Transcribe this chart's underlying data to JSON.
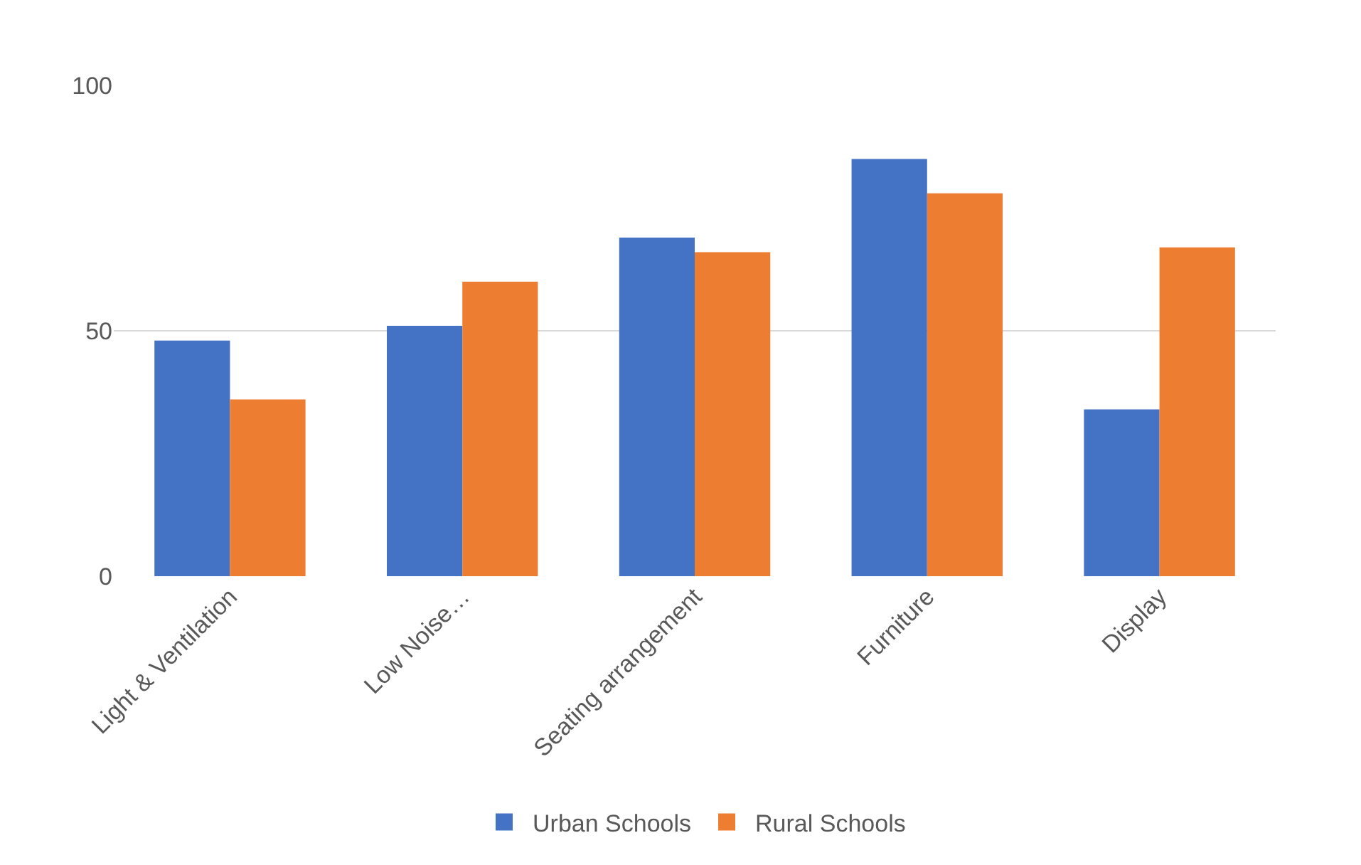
{
  "chart_data": {
    "type": "bar",
    "categories": [
      "Light & Ventilation",
      "Low Noise…",
      "Seating arrangement",
      "Furniture",
      "Display"
    ],
    "series": [
      {
        "name": "Urban Schools",
        "color": "#4472c4",
        "values": [
          48,
          51,
          69,
          85,
          34
        ]
      },
      {
        "name": "Rural Schools",
        "color": "#ed7d31",
        "values": [
          36,
          60,
          66,
          78,
          67
        ]
      }
    ],
    "ylim": [
      0,
      100
    ],
    "yticks": [
      0,
      50,
      100
    ],
    "grid": "y",
    "legend": "bottom"
  }
}
